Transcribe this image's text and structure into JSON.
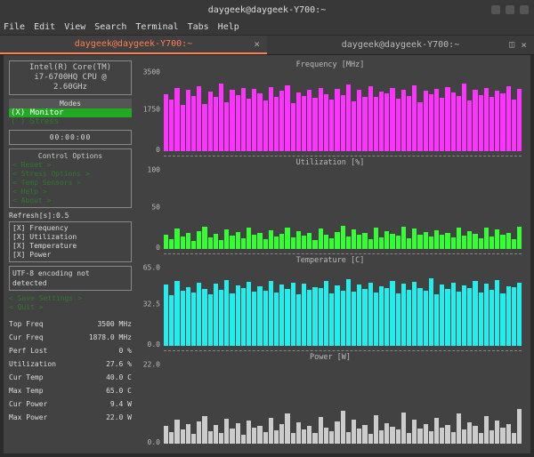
{
  "window": {
    "title": "daygeek@daygeek-Y700:~"
  },
  "menu": [
    "File",
    "Edit",
    "View",
    "Search",
    "Terminal",
    "Tabs",
    "Help"
  ],
  "tabs": [
    {
      "label": "daygeek@daygeek-Y700:~",
      "active": true
    },
    {
      "label": "daygeek@daygeek-Y700:~",
      "active": false
    }
  ],
  "cpu": {
    "line1": "Intel(R) Core(TM)",
    "line2": "i7-6700HQ CPU @",
    "line3": "2.60GHz"
  },
  "modes": {
    "title": "Modes",
    "active": "(X) Monitor",
    "inactive": "( ) Stress"
  },
  "timer": "00:00:00",
  "control": {
    "title": "Control Options",
    "items": [
      "< Reset >",
      "< Stress Options >",
      "< Temp Sensors  >",
      "< Help  >",
      "< About >"
    ]
  },
  "refresh": "Refresh[s]:0.5",
  "checks": [
    "[X] Frequency",
    "[X] Utilization",
    "[X] Temperature",
    "[X] Power"
  ],
  "encoding": {
    "line1": "UTF-8 encoding not",
    "line2": "detected"
  },
  "savequit": [
    "< Save Settings >",
    "< Quit >"
  ],
  "stats": [
    {
      "label": "Top Freq",
      "value": "3500 MHz"
    },
    {
      "label": "Cur Freq",
      "value": "1878.0 MHz"
    },
    {
      "label": "Perf Lost",
      "value": "0 %"
    },
    {
      "label": "Utilization",
      "value": "27.6 %"
    },
    {
      "label": "Cur Temp",
      "value": "40.0 C"
    },
    {
      "label": "Max Temp",
      "value": "65.0 C"
    },
    {
      "label": "Cur Power",
      "value": "9.4 W"
    },
    {
      "label": "Max Power",
      "value": "22.0 W"
    }
  ],
  "charts": [
    {
      "title": "Frequency [MHz]",
      "color": "#ff33ff",
      "ylabels": [
        "3500",
        "1750",
        "0"
      ],
      "values": [
        72,
        65,
        80,
        58,
        78,
        70,
        82,
        60,
        75,
        68,
        85,
        62,
        77,
        71,
        80,
        66,
        79,
        73,
        64,
        81,
        69,
        76,
        83,
        61,
        74,
        70,
        78,
        67,
        80,
        72,
        65,
        79,
        71,
        84,
        63,
        77,
        69,
        82,
        68,
        75,
        73,
        80,
        66,
        78,
        70,
        83,
        62,
        76,
        72,
        79,
        67,
        81,
        74,
        70,
        85,
        64,
        78,
        71,
        80,
        68,
        76,
        73,
        82,
        65,
        79
      ]
    },
    {
      "title": "Utilization [%]",
      "color": "#33ff33",
      "ylabels": [
        "100",
        "50",
        "0"
      ],
      "values": [
        18,
        12,
        25,
        15,
        20,
        10,
        22,
        28,
        14,
        19,
        11,
        24,
        16,
        21,
        13,
        26,
        17,
        20,
        12,
        23,
        15,
        19,
        27,
        14,
        22,
        16,
        20,
        11,
        25,
        18,
        13,
        21,
        29,
        15,
        24,
        17,
        20,
        12,
        26,
        14,
        22,
        19,
        16,
        28,
        13,
        25,
        17,
        21,
        15,
        23,
        18,
        20,
        14,
        27,
        16,
        22,
        19,
        13,
        26,
        15,
        24,
        17,
        20,
        12,
        28
      ]
    },
    {
      "title": "Temperature [C]",
      "color": "#22eeee",
      "ylabels": [
        "65.0",
        "32.5",
        "0.0"
      ],
      "values": [
        78,
        65,
        82,
        70,
        75,
        68,
        80,
        72,
        66,
        79,
        71,
        84,
        67,
        77,
        73,
        81,
        69,
        76,
        70,
        83,
        68,
        78,
        72,
        80,
        66,
        79,
        71,
        75,
        74,
        82,
        67,
        77,
        70,
        85,
        69,
        78,
        72,
        80,
        68,
        76,
        73,
        83,
        67,
        79,
        71,
        81,
        74,
        70,
        86,
        66,
        78,
        72,
        80,
        69,
        77,
        73,
        82,
        68,
        79,
        71,
        84,
        67,
        76,
        75,
        80
      ]
    },
    {
      "title": "Power [W]",
      "color": "#cccccc",
      "ylabels": [
        "22.0",
        "",
        "0.0"
      ],
      "values": [
        22,
        15,
        30,
        18,
        25,
        12,
        28,
        35,
        16,
        24,
        14,
        32,
        19,
        26,
        11,
        29,
        20,
        23,
        15,
        33,
        17,
        25,
        38,
        14,
        27,
        18,
        22,
        13,
        34,
        20,
        16,
        28,
        42,
        15,
        30,
        19,
        24,
        12,
        36,
        17,
        26,
        21,
        18,
        40,
        14,
        31,
        19,
        25,
        16,
        33,
        20,
        24,
        15,
        38,
        18,
        27,
        22,
        14,
        35,
        17,
        29,
        20,
        25,
        13,
        44
      ]
    }
  ],
  "colors": {
    "bg_term": "#424242"
  }
}
